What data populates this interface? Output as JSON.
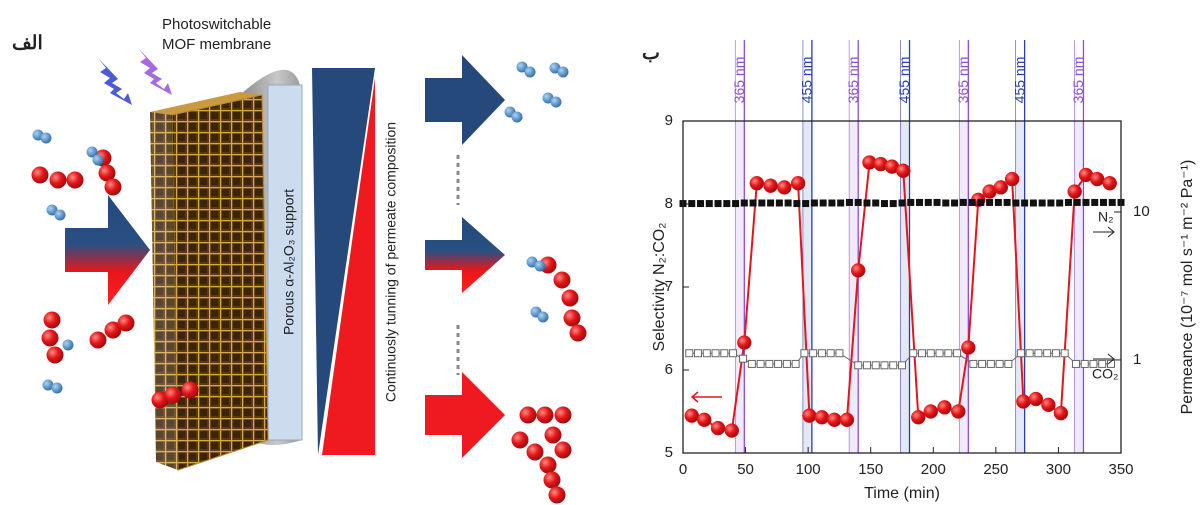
{
  "panel_a": {
    "label": "الف",
    "membrane_label": [
      "Photoswitchable",
      "MOF membrane"
    ],
    "support_label": "Porous α-Al₂O₃ support",
    "composition_label": "Continuosly tunning of permeate composition"
  },
  "chart_data": {
    "type": "line",
    "panel_label": "ب",
    "x_label": "Time (min)",
    "y_label": "Selectivity N₂:CO₂",
    "y2_label": "Permeance (10⁻⁷ mol s⁻¹ m⁻² Pa⁻¹)",
    "xlim": [
      0,
      350
    ],
    "xticks": [
      0,
      50,
      100,
      150,
      200,
      250,
      300,
      350
    ],
    "ylim": [
      5,
      9
    ],
    "yticks": [
      5,
      6,
      7,
      8,
      9
    ],
    "y2lim": [
      0.235,
      41.2
    ],
    "y2ticks": [
      1,
      10
    ],
    "y2scale": "log",
    "annotations": [
      {
        "text": "365 nm",
        "x": 49,
        "color": "#8a4fd8"
      },
      {
        "text": "455 nm",
        "x": 103,
        "color": "#2a3fa8"
      },
      {
        "text": "365 nm",
        "x": 140,
        "color": "#8a4fd8"
      },
      {
        "text": "455 nm",
        "x": 181,
        "color": "#2a3fa8"
      },
      {
        "text": "365 nm",
        "x": 228,
        "color": "#8a4fd8"
      },
      {
        "text": "455 nm",
        "x": 273,
        "color": "#2a3fa8"
      },
      {
        "text": "365 nm",
        "x": 320,
        "color": "#8a4fd8"
      }
    ],
    "series": [
      {
        "color": "#e3161b",
        "marker": "circle",
        "line": true,
        "x": [
          7,
          17,
          28,
          39,
          49,
          59,
          70,
          81,
          92,
          101,
          111,
          121,
          131,
          140,
          149,
          158,
          167,
          176,
          188,
          198,
          209,
          220,
          228,
          236,
          245,
          254,
          263,
          272,
          282,
          292,
          302,
          313,
          322,
          331,
          341
        ],
        "values": [
          5.45,
          5.4,
          5.3,
          5.27,
          6.33,
          8.25,
          8.22,
          8.2,
          8.25,
          5.45,
          5.43,
          5.4,
          5.4,
          7.2,
          8.5,
          8.48,
          8.45,
          8.4,
          5.43,
          5.5,
          5.55,
          5.5,
          6.27,
          8.05,
          8.15,
          8.2,
          8.3,
          5.62,
          5.65,
          5.58,
          5.48,
          8.15,
          8.35,
          8.3,
          8.25
        ]
      },
      {
        "name": "N₂",
        "color": "#111111",
        "axis": "y2",
        "marker": "filled-square",
        "line": false,
        "x": [
          0,
          7,
          14,
          21,
          28,
          35,
          42,
          49,
          56,
          63,
          70,
          77,
          84,
          91,
          98,
          105,
          112,
          119,
          126,
          133,
          140,
          147,
          154,
          161,
          168,
          175,
          182,
          189,
          196,
          203,
          210,
          217,
          224,
          231,
          238,
          245,
          252,
          259,
          266,
          273,
          280,
          287,
          294,
          301,
          308,
          315,
          322,
          329,
          336,
          343,
          350
        ],
        "values": [
          11.4,
          11.4,
          11.4,
          11.4,
          11.4,
          11.4,
          11.4,
          11.5,
          11.5,
          11.5,
          11.5,
          11.5,
          11.5,
          11.4,
          11.4,
          11.5,
          11.5,
          11.5,
          11.5,
          11.6,
          11.6,
          11.5,
          11.5,
          11.4,
          11.4,
          11.5,
          11.6,
          11.6,
          11.6,
          11.6,
          11.5,
          11.5,
          11.6,
          11.6,
          11.6,
          11.6,
          11.6,
          11.6,
          11.5,
          11.5,
          11.5,
          11.5,
          11.5,
          11.5,
          11.6,
          11.6,
          11.6,
          11.6,
          11.6,
          11.6,
          11.6
        ]
      },
      {
        "name": "CO₂",
        "color": "#666666",
        "axis": "y2",
        "marker": "open-square",
        "line": true,
        "x": [
          5,
          12,
          19,
          26,
          33,
          40,
          48,
          55,
          62,
          69,
          76,
          83,
          90,
          97,
          104,
          111,
          118,
          125,
          140,
          147,
          154,
          161,
          168,
          175,
          184,
          191,
          198,
          205,
          212,
          219,
          232,
          239,
          246,
          253,
          260,
          270,
          277,
          284,
          291,
          298,
          305,
          314,
          321,
          328,
          335,
          342
        ],
        "values": [
          1.11,
          1.11,
          1.11,
          1.11,
          1.11,
          1.11,
          1.02,
          0.94,
          0.94,
          0.94,
          0.94,
          0.94,
          0.94,
          1.11,
          1.11,
          1.11,
          1.11,
          1.11,
          0.92,
          0.92,
          0.92,
          0.92,
          0.92,
          0.92,
          1.11,
          1.11,
          1.11,
          1.11,
          1.11,
          1.11,
          0.94,
          0.94,
          0.94,
          0.94,
          0.94,
          1.11,
          1.11,
          1.11,
          1.11,
          1.11,
          1.11,
          0.94,
          0.94,
          0.94,
          0.94,
          0.94
        ]
      }
    ]
  }
}
